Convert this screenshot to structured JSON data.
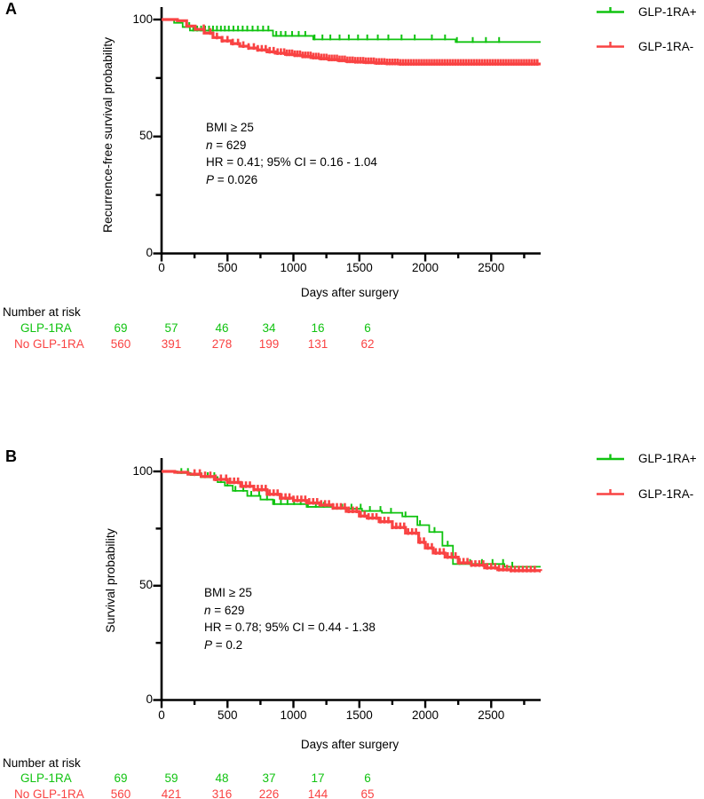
{
  "colors": {
    "glp1ra_plus": "#10c310",
    "glp1ra_minus": "#f94343",
    "axis": "#000000"
  },
  "figure": {
    "panels": [
      {
        "letter": "A",
        "y_axis_title": "Recurrence-free survival probability",
        "x_axis_title": "Days after surgery",
        "annotation": {
          "bmi": "BMI ≥ 25",
          "n_label": "n",
          "n_rest": " = 629",
          "hr": "HR = 0.41; 95% CI = 0.16 - 1.04",
          "p_label": "P",
          "p_rest": " = 0.026"
        },
        "legend": [
          {
            "label": "GLP-1RA+",
            "color": "glp1ra_plus"
          },
          {
            "label": "GLP-1RA-",
            "color": "glp1ra_minus"
          }
        ],
        "risk_table": {
          "header": "Number at risk",
          "rows": [
            {
              "label": "GLP-1RA",
              "color": "glp1ra_plus",
              "values": [
                "69",
                "57",
                "46",
                "34",
                "16",
                "6"
              ]
            },
            {
              "label": "No GLP-1RA",
              "color": "glp1ra_minus",
              "values": [
                "560",
                "391",
                "278",
                "199",
                "131",
                "62"
              ]
            }
          ]
        }
      },
      {
        "letter": "B",
        "y_axis_title": "Survival probability",
        "x_axis_title": "Days after surgery",
        "annotation": {
          "bmi": "BMI ≥ 25",
          "n_label": "n",
          "n_rest": " = 629",
          "hr": "HR = 0.78; 95% CI = 0.44 - 1.38",
          "p_label": "P",
          "p_rest": " = 0.2"
        },
        "legend": [
          {
            "label": "GLP-1RA+",
            "color": "glp1ra_plus"
          },
          {
            "label": "GLP-1RA-",
            "color": "glp1ra_minus"
          }
        ],
        "risk_table": {
          "header": "Number at risk",
          "rows": [
            {
              "label": "GLP-1RA",
              "color": "glp1ra_plus",
              "values": [
                "69",
                "59",
                "48",
                "37",
                "17",
                "6"
              ]
            },
            {
              "label": "No GLP-1RA",
              "color": "glp1ra_minus",
              "values": [
                "560",
                "421",
                "316",
                "226",
                "144",
                "65"
              ]
            }
          ]
        }
      }
    ]
  },
  "chart_data": [
    {
      "type": "line",
      "subtype": "kaplan-meier-step",
      "panel": "A",
      "title": "BMI ≥ 25; n = 629; HR = 0.41; 95% CI = 0.16 - 1.04; P = 0.026",
      "xlabel": "Days after surgery",
      "ylabel": "Recurrence-free survival probability",
      "xlim": [
        0,
        2900
      ],
      "ylim": [
        0,
        100
      ],
      "x_ticks_major": [
        0,
        500,
        1000,
        1500,
        2000,
        2500
      ],
      "x_ticks_minor": [
        250,
        750,
        1250,
        1750,
        2250,
        2750
      ],
      "y_ticks_major": [
        0,
        50,
        100
      ],
      "y_ticks_minor": [
        25,
        75
      ],
      "grid": false,
      "legend_position": "top-right-outside",
      "series": [
        {
          "name": "GLP-1RA+",
          "color": "#10c310",
          "steps": [
            [
              0,
              100
            ],
            [
              95,
              98.6
            ],
            [
              160,
              96.8
            ],
            [
              215,
              95.3
            ],
            [
              845,
              93
            ],
            [
              1150,
              91.5
            ],
            [
              2230,
              90.4
            ],
            [
              2875,
              90.4
            ]
          ],
          "censor_days": [
            210,
            240,
            270,
            300,
            330,
            360,
            390,
            420,
            450,
            480,
            510,
            545,
            580,
            615,
            650,
            690,
            730,
            770,
            810,
            870,
            905,
            940,
            990,
            1040,
            1090,
            1160,
            1220,
            1280,
            1350,
            1420,
            1490,
            1560,
            1640,
            1720,
            1820,
            1920,
            2050,
            2150,
            2240,
            2360,
            2460,
            2560
          ]
        },
        {
          "name": "GLP-1RA-",
          "color": "#f94343",
          "steps": [
            [
              0,
              100
            ],
            [
              120,
              99.5
            ],
            [
              190,
              97.2
            ],
            [
              255,
              95.8
            ],
            [
              323,
              94.2
            ],
            [
              390,
              92.3
            ],
            [
              458,
              90.9
            ],
            [
              530,
              89.7
            ],
            [
              593,
              88.6
            ],
            [
              660,
              87.8
            ],
            [
              728,
              87
            ],
            [
              800,
              86.2
            ],
            [
              863,
              85.6
            ],
            [
              940,
              85.1
            ],
            [
              1010,
              84.7
            ],
            [
              1070,
              84.2
            ],
            [
              1132,
              83.7
            ],
            [
              1200,
              83.3
            ],
            [
              1267,
              82.9
            ],
            [
              1340,
              82.5
            ],
            [
              1402,
              82.1
            ],
            [
              1470,
              81.9
            ],
            [
              1537,
              81.7
            ],
            [
              1620,
              81.4
            ],
            [
              1700,
              81.2
            ],
            [
              1800,
              81
            ],
            [
              2875,
              81
            ]
          ],
          "censor_days": [
            320,
            370,
            420,
            460,
            500,
            540,
            580,
            620,
            660,
            700,
            730,
            760,
            790,
            820,
            850,
            880,
            905,
            930,
            950,
            970,
            990,
            1010,
            1030,
            1050,
            1070,
            1090,
            1110,
            1130,
            1150,
            1170,
            1190,
            1210,
            1230,
            1250,
            1270,
            1290,
            1310,
            1330,
            1350,
            1370,
            1390,
            1410,
            1430,
            1450,
            1470,
            1490,
            1510,
            1530,
            1550,
            1570,
            1590,
            1610,
            1630,
            1650,
            1670,
            1690,
            1710,
            1730,
            1750,
            1770,
            1790,
            1810,
            1830,
            1850,
            1870,
            1890,
            1910,
            1930,
            1950,
            1970,
            1990,
            2010,
            2030,
            2050,
            2070,
            2090,
            2110,
            2130,
            2150,
            2170,
            2190,
            2210,
            2230,
            2250,
            2270,
            2290,
            2310,
            2330,
            2350,
            2370,
            2390,
            2410,
            2430,
            2450,
            2470,
            2490,
            2510,
            2530,
            2550,
            2570,
            2590,
            2610,
            2630,
            2650,
            2670,
            2690,
            2710,
            2730,
            2750,
            2770,
            2790,
            2810,
            2830,
            2850
          ]
        }
      ],
      "number_at_risk": {
        "days": [
          0,
          500,
          1000,
          1500,
          2000,
          2500
        ],
        "GLP-1RA": [
          69,
          57,
          46,
          34,
          16,
          6
        ],
        "No GLP-1RA": [
          560,
          391,
          278,
          199,
          131,
          62
        ]
      }
    },
    {
      "type": "line",
      "subtype": "kaplan-meier-step",
      "panel": "B",
      "title": "BMI ≥ 25; n = 629; HR = 0.78; 95% CI = 0.44 - 1.38; P = 0.2",
      "xlabel": "Days after surgery",
      "ylabel": "Survival probability",
      "xlim": [
        0,
        2900
      ],
      "ylim": [
        0,
        100
      ],
      "x_ticks_major": [
        0,
        500,
        1000,
        1500,
        2000,
        2500
      ],
      "x_ticks_minor": [
        250,
        750,
        1250,
        1750,
        2250,
        2750
      ],
      "y_ticks_major": [
        0,
        50,
        100
      ],
      "y_ticks_minor": [
        25,
        75
      ],
      "grid": false,
      "legend_position": "top-right-outside",
      "series": [
        {
          "name": "GLP-1RA+",
          "color": "#10c310",
          "steps": [
            [
              0,
              100
            ],
            [
              120,
              99.3
            ],
            [
              220,
              98.4
            ],
            [
              300,
              97.5
            ],
            [
              425,
              95.3
            ],
            [
              480,
              93.8
            ],
            [
              540,
              91.5
            ],
            [
              650,
              89.3
            ],
            [
              750,
              87.7
            ],
            [
              845,
              85.7
            ],
            [
              1100,
              84.5
            ],
            [
              1300,
              83.7
            ],
            [
              1520,
              82.7
            ],
            [
              1671,
              81.9
            ],
            [
              1826,
              80.3
            ],
            [
              1940,
              76.5
            ],
            [
              2030,
              73.5
            ],
            [
              2130,
              67.5
            ],
            [
              2210,
              59.5
            ],
            [
              2600,
              58.3
            ],
            [
              2875,
              58.3
            ]
          ],
          "censor_days": [
            150,
            200,
            250,
            300,
            350,
            400,
            450,
            500,
            560,
            620,
            680,
            740,
            800,
            855,
            905,
            955,
            1005,
            1055,
            1110,
            1170,
            1230,
            1300,
            1370,
            1440,
            1510,
            1580,
            1660,
            1740,
            1850,
            1960,
            2070,
            2170,
            2260,
            2340,
            2430,
            2510,
            2590,
            2660
          ]
        },
        {
          "name": "GLP-1RA-",
          "color": "#f94343",
          "steps": [
            [
              0,
              100
            ],
            [
              100,
              99.6
            ],
            [
              200,
              98.8
            ],
            [
              300,
              97.8
            ],
            [
              400,
              96.5
            ],
            [
              500,
              95.2
            ],
            [
              600,
              93.5
            ],
            [
              700,
              92
            ],
            [
              800,
              90
            ],
            [
              900,
              88.3
            ],
            [
              1000,
              87.3
            ],
            [
              1100,
              86.2
            ],
            [
              1200,
              85.3
            ],
            [
              1300,
              84
            ],
            [
              1400,
              82.5
            ],
            [
              1500,
              80.5
            ],
            [
              1560,
              79.6
            ],
            [
              1650,
              78
            ],
            [
              1750,
              75.5
            ],
            [
              1850,
              73
            ],
            [
              1950,
              69
            ],
            [
              2000,
              66.5
            ],
            [
              2060,
              64.3
            ],
            [
              2150,
              62.5
            ],
            [
              2250,
              60
            ],
            [
              2350,
              59
            ],
            [
              2450,
              57.8
            ],
            [
              2550,
              57
            ],
            [
              2650,
              56.6
            ],
            [
              2875,
              56.4
            ]
          ],
          "censor_days": [
            250,
            290,
            330,
            370,
            410,
            450,
            490,
            520,
            550,
            580,
            610,
            640,
            670,
            700,
            730,
            760,
            790,
            820,
            850,
            880,
            910,
            940,
            970,
            1000,
            1030,
            1060,
            1090,
            1120,
            1150,
            1180,
            1210,
            1240,
            1270,
            1300,
            1330,
            1360,
            1390,
            1420,
            1450,
            1480,
            1510,
            1540,
            1570,
            1600,
            1630,
            1660,
            1690,
            1720,
            1750,
            1780,
            1810,
            1840,
            1870,
            1900,
            1930,
            1960,
            1990,
            2020,
            2050,
            2080,
            2110,
            2140,
            2170,
            2200,
            2230,
            2260,
            2290,
            2320,
            2350,
            2380,
            2410,
            2440,
            2470,
            2500,
            2530,
            2560,
            2590,
            2620,
            2650,
            2680,
            2710,
            2740,
            2770,
            2800,
            2830
          ]
        }
      ],
      "number_at_risk": {
        "days": [
          0,
          500,
          1000,
          1500,
          2000,
          2500
        ],
        "GLP-1RA": [
          69,
          59,
          48,
          37,
          17,
          6
        ],
        "No GLP-1RA": [
          560,
          421,
          316,
          226,
          144,
          65
        ]
      }
    }
  ]
}
